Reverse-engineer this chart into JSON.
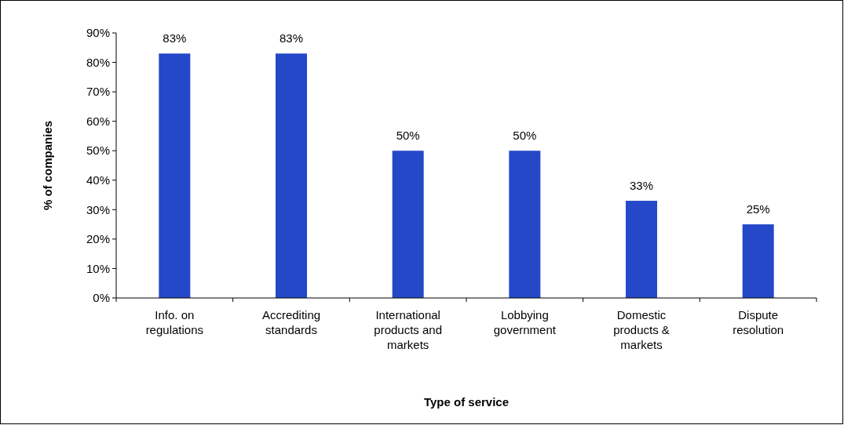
{
  "chart_data": {
    "type": "bar",
    "xlabel": "Type of service",
    "ylabel": "% of companies",
    "categories": [
      "Info. on regulations",
      "Accrediting standards",
      "International products and markets",
      "Lobbying government",
      "Domestic products & markets",
      "Dispute resolution"
    ],
    "values": [
      83,
      83,
      50,
      50,
      33,
      25
    ],
    "value_labels": [
      "83%",
      "83%",
      "50%",
      "50%",
      "33%",
      "25%"
    ],
    "color": "#2448c8",
    "ylim": [
      0,
      90
    ],
    "yticks": [
      {
        "value": 0,
        "label": "0%"
      },
      {
        "value": 10,
        "label": "10%"
      },
      {
        "value": 20,
        "label": "20%"
      },
      {
        "value": 30,
        "label": "30%"
      },
      {
        "value": 40,
        "label": "40%"
      },
      {
        "value": 50,
        "label": "50%"
      },
      {
        "value": 60,
        "label": "60%"
      },
      {
        "value": 70,
        "label": "70%"
      },
      {
        "value": 80,
        "label": "80%"
      },
      {
        "value": 90,
        "label": "90%"
      }
    ],
    "grid": false
  }
}
